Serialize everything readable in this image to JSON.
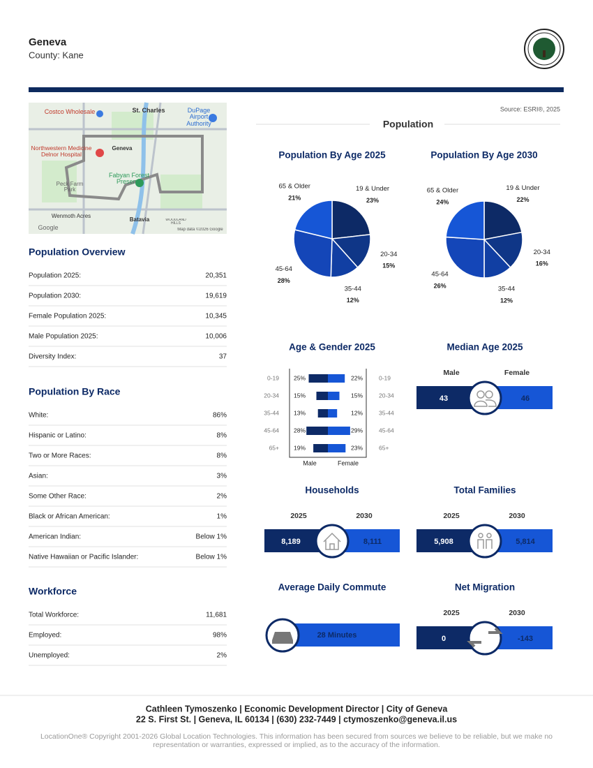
{
  "header": {
    "title": "Geneva",
    "subtitle": "County: Kane"
  },
  "map": {
    "labels": [
      "Costco Wholesale",
      "St. Charles",
      "DuPage Airport Authority",
      "Northwestern Medicine Delnor Hospital",
      "Geneva",
      "Fabyan Forest Preserve",
      "Peck Farm Park",
      "Wenmoth Acres",
      "Batavia",
      "WOODLAND HILLS",
      "Google",
      "Map data ©2026 Google"
    ]
  },
  "population_overview": {
    "title": "Population Overview",
    "rows": [
      [
        "Population 2025:",
        "20,351"
      ],
      [
        "Population 2030:",
        "19,619"
      ],
      [
        "Female Population 2025:",
        "10,345"
      ],
      [
        "Male Population 2025:",
        "10,006"
      ],
      [
        "Diversity Index:",
        "37"
      ]
    ]
  },
  "population_by_race": {
    "title": "Population By Race",
    "rows": [
      [
        "White:",
        "86%"
      ],
      [
        "Hispanic or Latino:",
        "8%"
      ],
      [
        "Two or More Races:",
        "8%"
      ],
      [
        "Asian:",
        "3%"
      ],
      [
        "Some Other Race:",
        "2%"
      ],
      [
        "Black or African American:",
        "1%"
      ],
      [
        "American Indian:",
        "Below 1%"
      ],
      [
        "Native Hawaiian or Pacific Islander:",
        "Below 1%"
      ]
    ]
  },
  "workforce": {
    "title": "Workforce",
    "rows": [
      [
        "Total Workforce:",
        "11,681"
      ],
      [
        "Employed:",
        "98%"
      ],
      [
        "Unemployed:",
        "2%"
      ]
    ]
  },
  "population": {
    "source": "Source: ESRI®, 2025",
    "title": "Population"
  },
  "age_2025": {
    "type": "pie",
    "title": "Population By Age 2025",
    "categories": [
      "19 & Under",
      "20-34",
      "35-44",
      "45-64",
      "65 & Older"
    ],
    "values": [
      23,
      15,
      12,
      28,
      21
    ],
    "value_labels": [
      "23%",
      "15%",
      "12%",
      "28%",
      "21%"
    ],
    "colors": [
      "#0d2a66",
      "#0f3687",
      "#113fa3",
      "#1446b8",
      "#1656d6"
    ]
  },
  "age_2030": {
    "type": "pie",
    "title": "Population By Age 2030",
    "categories": [
      "19 & Under",
      "20-34",
      "35-44",
      "45-64",
      "65 & Older"
    ],
    "values": [
      22,
      16,
      12,
      26,
      24
    ],
    "value_labels": [
      "22%",
      "16%",
      "12%",
      "26%",
      "24%"
    ],
    "colors": [
      "#0d2a66",
      "#0f3687",
      "#113fa3",
      "#1446b8",
      "#1656d6"
    ]
  },
  "age_gender": {
    "type": "bar",
    "title": "Age & Gender 2025",
    "categories": [
      "0-19",
      "20-34",
      "35-44",
      "45-64",
      "65+"
    ],
    "series": [
      {
        "name": "Male",
        "color": "#0d2a66",
        "values": [
          25,
          15,
          13,
          28,
          19
        ],
        "value_labels": [
          "25%",
          "15%",
          "13%",
          "28%",
          "19%"
        ]
      },
      {
        "name": "Female",
        "color": "#1656d6",
        "values": [
          22,
          15,
          12,
          29,
          23
        ],
        "value_labels": [
          "22%",
          "15%",
          "12%",
          "29%",
          "23%"
        ]
      }
    ]
  },
  "median_age": {
    "title": "Median Age 2025",
    "labels": [
      "Male",
      "Female"
    ],
    "values": [
      "43",
      "46"
    ]
  },
  "households": {
    "title": "Households",
    "labels": [
      "2025",
      "2030"
    ],
    "values": [
      "8,189",
      "8,111"
    ]
  },
  "total_families": {
    "title": "Total Families",
    "labels": [
      "2025",
      "2030"
    ],
    "values": [
      "5,908",
      "5,814"
    ]
  },
  "commute": {
    "title": "Average Daily Commute",
    "value": "28 Minutes"
  },
  "net_migration": {
    "title": "Net Migration",
    "labels": [
      "2025",
      "2030"
    ],
    "values": [
      "0",
      "-143"
    ]
  },
  "footer": {
    "contact": [
      "Cathleen Tymoszenko | Economic Development Director | City of Geneva",
      "22 S. First St. | Geneva, IL 60134 | (630) 232-7449 | ctymoszenko@geneva.il.us"
    ],
    "copyright": "LocationOne® Copyright 2001-2026 Global Location Technologies. This information has been secured from sources we believe to be reliable, but we make no representation or warranties, expressed or implied, as to the accuracy of the information."
  }
}
